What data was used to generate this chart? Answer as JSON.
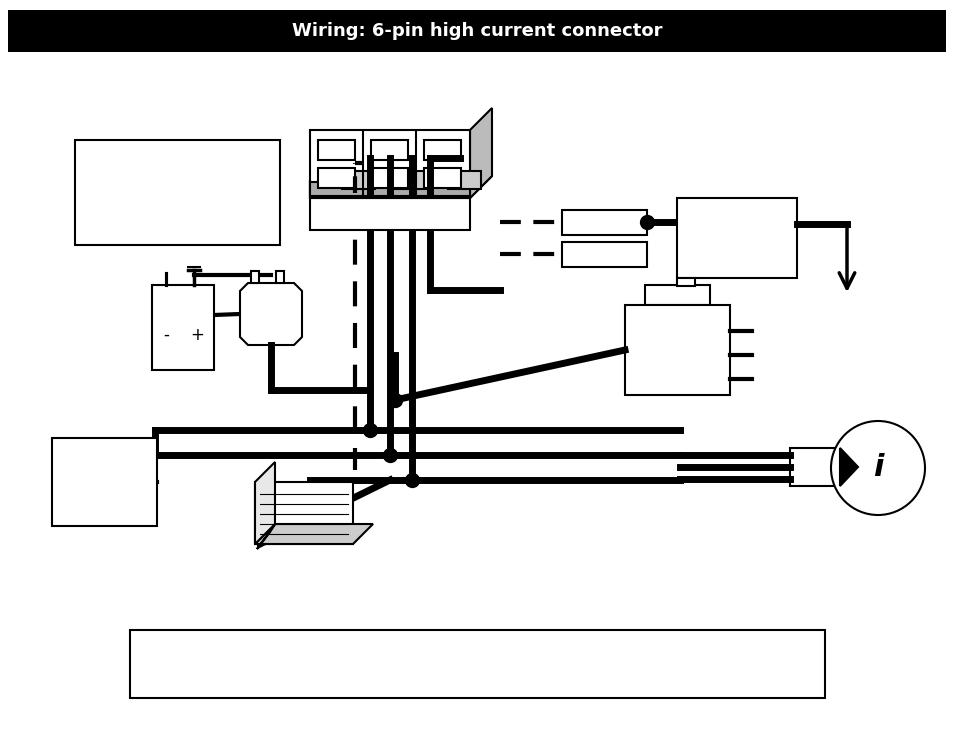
{
  "title": "Wiring: 6-pin high current connector",
  "bg_color": "#ffffff",
  "fig_width": 9.54,
  "fig_height": 7.38,
  "dpi": 100
}
